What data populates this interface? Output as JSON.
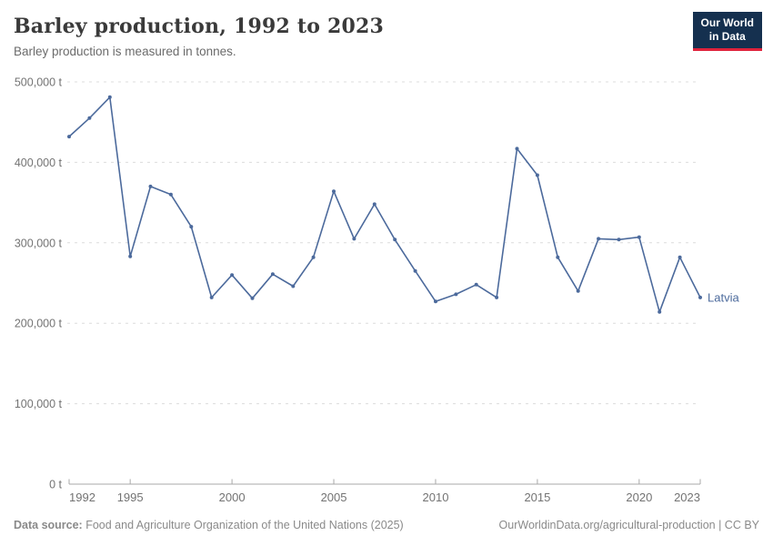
{
  "header": {
    "title": "Barley production, 1992 to 2023",
    "subtitle": "Barley production is measured in tonnes.",
    "logo": {
      "line1": "Our World",
      "line2": "in Data",
      "bg_color": "#15304f",
      "accent_color": "#e0233c"
    }
  },
  "chart_data": {
    "type": "line",
    "title": "Barley production, 1992 to 2023",
    "unit": "t",
    "xlim": [
      1992,
      2023
    ],
    "ylim": [
      0,
      500000
    ],
    "x_ticks": [
      1992,
      1995,
      2000,
      2005,
      2010,
      2015,
      2020,
      2023
    ],
    "y_ticks": [
      0,
      100000,
      200000,
      300000,
      400000,
      500000
    ],
    "grid": "horizontal-dashed",
    "legend_position": "end-of-line-label",
    "series": [
      {
        "name": "Latvia",
        "color": "#4c6a9c",
        "x": [
          1992,
          1993,
          1994,
          1995,
          1996,
          1997,
          1998,
          1999,
          2000,
          2001,
          2002,
          2003,
          2004,
          2005,
          2006,
          2007,
          2008,
          2009,
          2010,
          2011,
          2012,
          2013,
          2014,
          2015,
          2016,
          2017,
          2018,
          2019,
          2020,
          2021,
          2022,
          2023
        ],
        "values": [
          432000,
          455000,
          481000,
          283000,
          370000,
          360000,
          320000,
          232000,
          260000,
          231000,
          261000,
          246000,
          282000,
          364000,
          305000,
          348000,
          304000,
          265000,
          227000,
          236000,
          248000,
          232000,
          417000,
          384000,
          282000,
          240000,
          305000,
          304000,
          307000,
          214000,
          282000,
          232000
        ]
      }
    ],
    "colors": {
      "gridline": "#dcdcdc",
      "axis": "#a8a8a8",
      "tick_label": "#737373"
    }
  },
  "footer": {
    "source_label": "Data source:",
    "source_text": " Food and Agriculture Organization of the United Nations (2025)",
    "link_text": "OurWorldinData.org/agricultural-production | CC BY"
  }
}
